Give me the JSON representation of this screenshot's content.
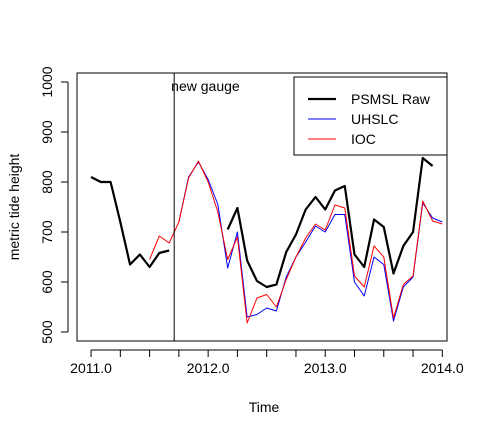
{
  "chart_data": {
    "type": "line",
    "title": "",
    "xlabel": "Time",
    "ylabel": "metric tide height",
    "xlim": [
      2010.88,
      2014.04
    ],
    "ylim": [
      482,
      1018
    ],
    "x_ticks": [
      2011.0,
      2012.0,
      2013.0,
      2014.0
    ],
    "x_tick_labels": [
      "2011.0",
      "2012.0",
      "2013.0",
      "2014.0"
    ],
    "y_ticks": [
      500,
      600,
      700,
      800,
      900,
      1000
    ],
    "y_tick_labels": [
      "500",
      "600",
      "700",
      "800",
      "900",
      "1000"
    ],
    "grid": false,
    "legend_position": "top-right",
    "annotation": {
      "text": "new gauge",
      "x": 2011.71
    },
    "x": [
      2011.0,
      2011.083,
      2011.167,
      2011.25,
      2011.333,
      2011.417,
      2011.5,
      2011.583,
      2011.667,
      2011.75,
      2011.833,
      2011.917,
      2012.0,
      2012.083,
      2012.167,
      2012.25,
      2012.333,
      2012.417,
      2012.5,
      2012.583,
      2012.667,
      2012.75,
      2012.833,
      2012.917,
      2013.0,
      2013.083,
      2013.167,
      2013.25,
      2013.333,
      2013.417,
      2013.5,
      2013.583,
      2013.667,
      2013.75,
      2013.833,
      2013.917,
      2014.0
    ],
    "series": [
      {
        "name": "PSMSL Raw",
        "color": "#000000",
        "width": 2.2,
        "values": [
          810,
          800,
          800,
          720,
          635,
          655,
          630,
          658,
          663,
          null,
          null,
          null,
          null,
          null,
          705,
          748,
          643,
          602,
          590,
          595,
          660,
          695,
          745,
          770,
          745,
          783,
          792,
          655,
          630,
          725,
          710,
          617,
          672,
          700,
          848,
          832,
          null
        ]
      },
      {
        "name": "UHSLC",
        "color": "#0000ff",
        "width": 1,
        "values": [
          null,
          null,
          null,
          null,
          null,
          null,
          null,
          null,
          null,
          720,
          810,
          840,
          805,
          755,
          628,
          700,
          530,
          535,
          548,
          542,
          610,
          650,
          680,
          712,
          700,
          735,
          735,
          600,
          572,
          650,
          635,
          522,
          590,
          610,
          758,
          728,
          720
        ]
      },
      {
        "name": "IOC",
        "color": "#ff0000",
        "width": 1,
        "values": [
          null,
          null,
          null,
          null,
          null,
          null,
          645,
          692,
          678,
          720,
          808,
          842,
          800,
          740,
          645,
          690,
          518,
          568,
          575,
          550,
          605,
          650,
          688,
          716,
          704,
          754,
          748,
          612,
          590,
          672,
          650,
          528,
          595,
          612,
          762,
          722,
          716
        ]
      }
    ]
  }
}
